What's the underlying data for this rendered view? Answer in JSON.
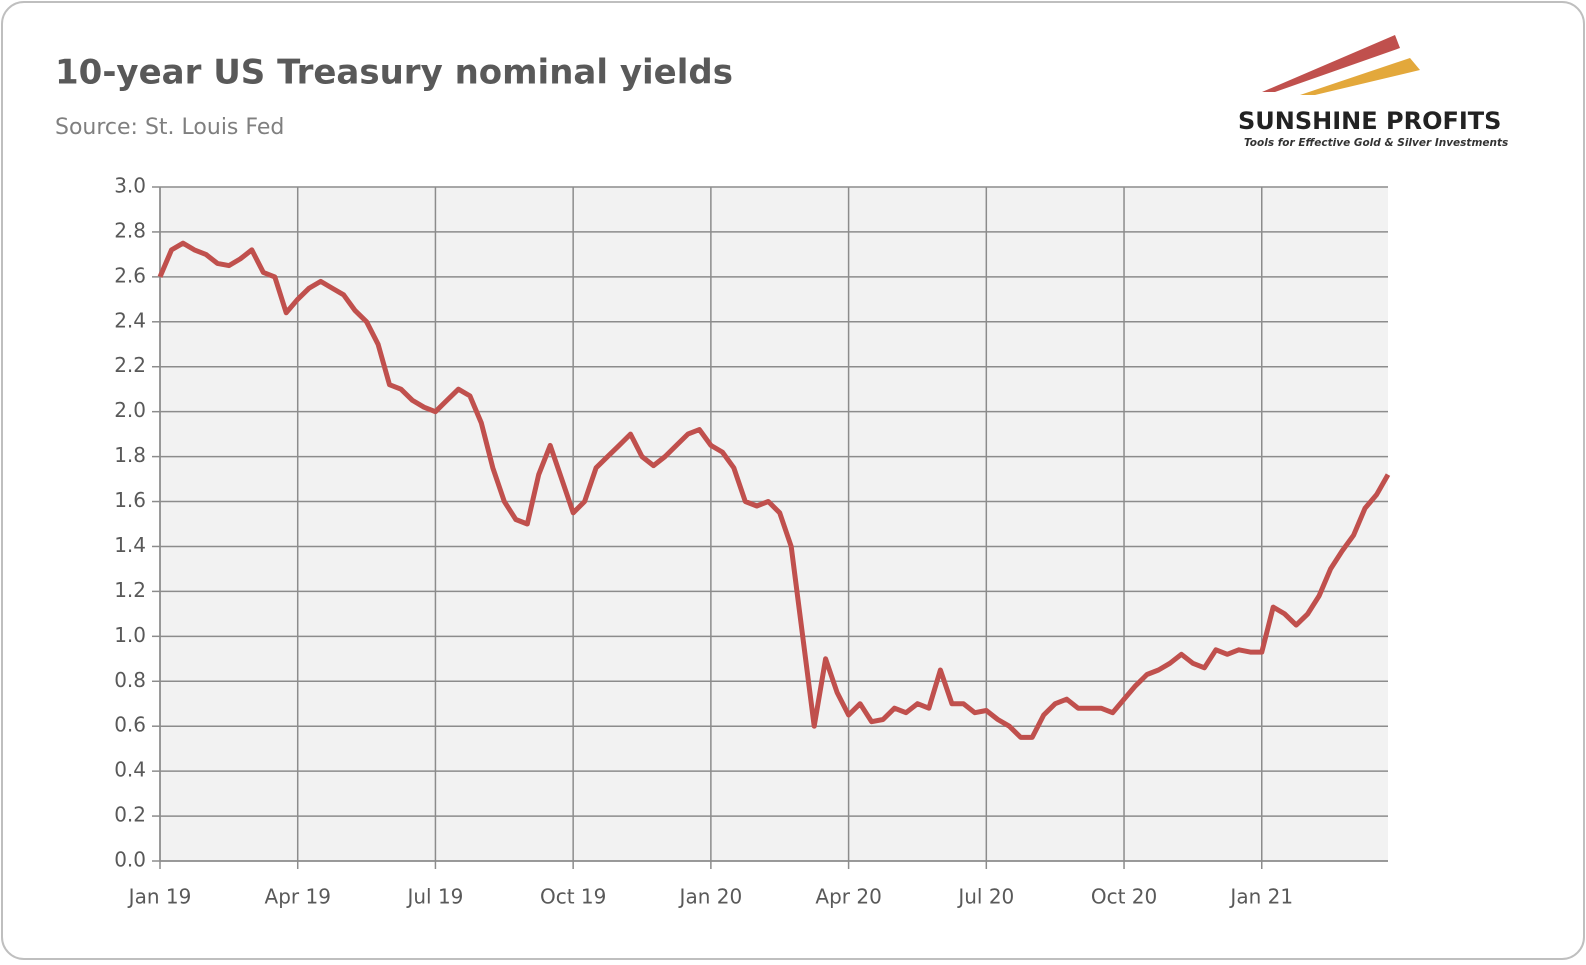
{
  "chart_data": {
    "type": "line",
    "title": "10-year US Treasury nominal yields",
    "subtitle": "Source: St. Louis Fed",
    "annotations": [
      "SUNSHINE PROFITS",
      "Tools for Effective Gold & Silver Investments"
    ],
    "categories": [
      "Jan 19",
      null,
      null,
      null,
      null,
      null,
      null,
      null,
      null,
      null,
      null,
      null,
      "Apr 19",
      null,
      null,
      null,
      null,
      null,
      null,
      null,
      null,
      null,
      null,
      null,
      "Jul 19",
      null,
      null,
      null,
      null,
      null,
      null,
      null,
      null,
      null,
      null,
      null,
      "Oct 19",
      null,
      null,
      null,
      null,
      null,
      null,
      null,
      null,
      null,
      null,
      null,
      "Jan 20",
      null,
      null,
      null,
      null,
      null,
      null,
      null,
      null,
      null,
      null,
      null,
      "Apr 20",
      null,
      null,
      null,
      null,
      null,
      null,
      null,
      null,
      null,
      null,
      null,
      "Jul 20",
      null,
      null,
      null,
      null,
      null,
      null,
      null,
      null,
      null,
      null,
      null,
      "Oct 20",
      null,
      null,
      null,
      null,
      null,
      null,
      null,
      null,
      null,
      null,
      null,
      "Jan 21",
      null,
      null,
      null,
      null,
      null,
      null,
      null,
      null,
      null,
      null,
      null
    ],
    "series": [
      {
        "name": "10-year yield",
        "color": "#c0504d",
        "values": [
          2.6,
          2.72,
          2.75,
          2.72,
          2.7,
          2.66,
          2.65,
          2.68,
          2.72,
          2.62,
          2.6,
          2.44,
          2.5,
          2.55,
          2.58,
          2.55,
          2.52,
          2.45,
          2.4,
          2.3,
          2.12,
          2.1,
          2.05,
          2.02,
          2.0,
          2.05,
          2.1,
          2.07,
          1.95,
          1.75,
          1.6,
          1.52,
          1.5,
          1.72,
          1.85,
          1.7,
          1.55,
          1.6,
          1.75,
          1.8,
          1.85,
          1.9,
          1.8,
          1.76,
          1.8,
          1.85,
          1.9,
          1.92,
          1.85,
          1.82,
          1.75,
          1.6,
          1.58,
          1.6,
          1.55,
          1.4,
          1.0,
          0.6,
          0.9,
          0.75,
          0.65,
          0.7,
          0.62,
          0.63,
          0.68,
          0.66,
          0.7,
          0.68,
          0.85,
          0.7,
          0.7,
          0.66,
          0.67,
          0.63,
          0.6,
          0.55,
          0.55,
          0.65,
          0.7,
          0.72,
          0.68,
          0.68,
          0.68,
          0.66,
          0.72,
          0.78,
          0.83,
          0.85,
          0.88,
          0.92,
          0.88,
          0.86,
          0.94,
          0.92,
          0.94,
          0.93,
          0.93,
          1.13,
          1.1,
          1.05,
          1.1,
          1.18,
          1.3,
          1.38,
          1.45,
          1.57,
          1.63,
          1.72
        ]
      }
    ],
    "ylim": [
      0,
      3
    ],
    "yticks": [
      {
        "value": 0,
        "label": "0.0"
      },
      0.2,
      0.4,
      0.6,
      0.8,
      {
        "value": 1,
        "label": "1.0"
      },
      1.2,
      1.4,
      1.6,
      1.8,
      {
        "value": 2,
        "label": "2.0"
      },
      2.2,
      2.4,
      2.6,
      2.8,
      {
        "value": 3,
        "label": "3.0"
      }
    ],
    "grid": true
  }
}
